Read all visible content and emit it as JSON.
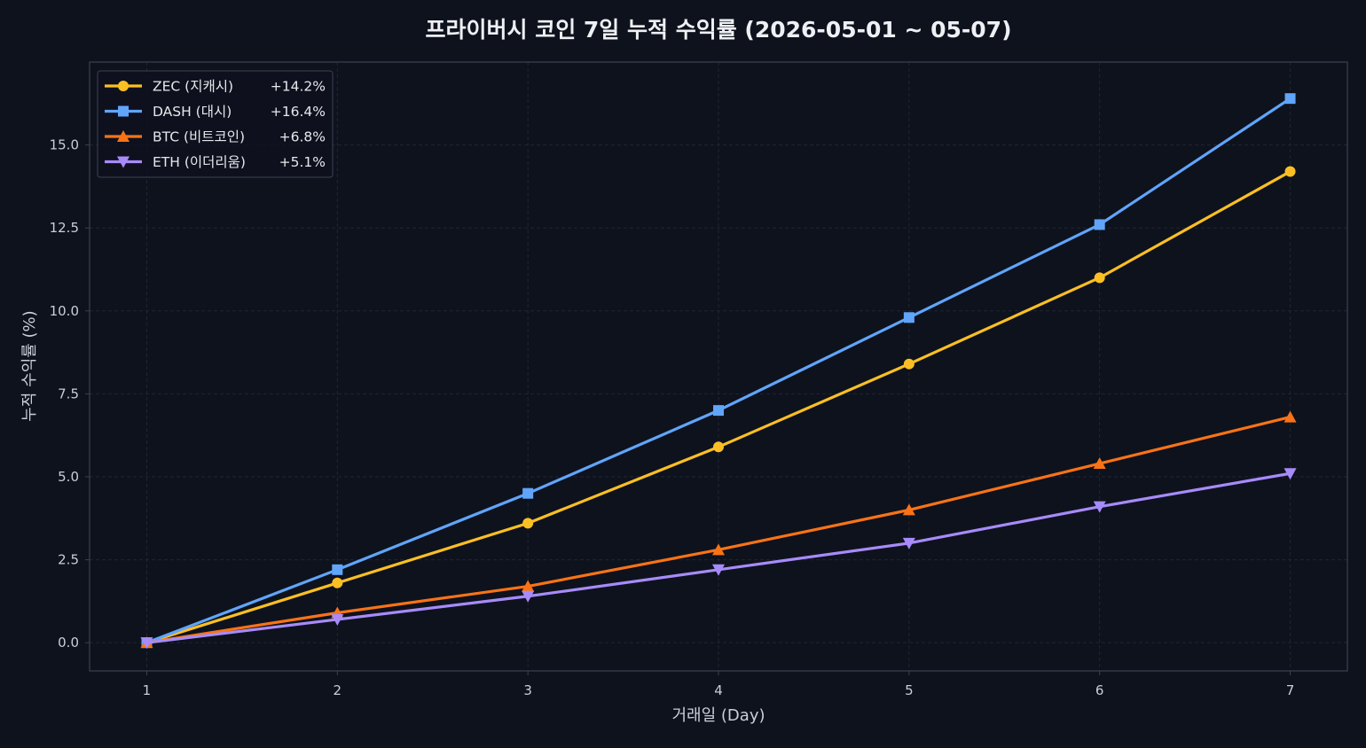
{
  "chart_data": {
    "type": "line",
    "title": "프라이버시 코인 7일 누적 수익률 (2026-05-01 ~ 05-07)",
    "xlabel": "거래일 (Day)",
    "ylabel": "누적 수익률 (%)",
    "x": [
      1,
      2,
      3,
      4,
      5,
      6,
      7
    ],
    "xticks": [
      "1",
      "2",
      "3",
      "4",
      "5",
      "6",
      "7"
    ],
    "xlim": [
      0.7,
      7.3
    ],
    "ylim": [
      -0.85,
      17.5
    ],
    "yticks": [
      "0.0",
      "2.5",
      "5.0",
      "7.5",
      "10.0",
      "12.5",
      "15.0"
    ],
    "grid": true,
    "legend_position": "top-left",
    "series": [
      {
        "name": "ZEC (지캐시)",
        "legend_value": "+14.2%",
        "color": "#fbbf24",
        "marker": "circle",
        "values": [
          0.0,
          1.8,
          3.6,
          5.9,
          8.4,
          11.0,
          14.2
        ]
      },
      {
        "name": "DASH (대시)",
        "legend_value": "+16.4%",
        "color": "#60a5fa",
        "marker": "square",
        "values": [
          0.0,
          2.2,
          4.5,
          7.0,
          9.8,
          12.6,
          16.4
        ]
      },
      {
        "name": "BTC (비트코인)",
        "legend_value": "+6.8%",
        "color": "#f97316",
        "marker": "triangle-up",
        "values": [
          0.0,
          0.9,
          1.7,
          2.8,
          4.0,
          5.4,
          6.8
        ]
      },
      {
        "name": "ETH (이더리움)",
        "legend_value": "+5.1%",
        "color": "#a78bfa",
        "marker": "triangle-down",
        "values": [
          0.0,
          0.7,
          1.4,
          2.2,
          3.0,
          4.1,
          5.1
        ]
      }
    ],
    "colors": {
      "background": "#0e121d",
      "axes_border": "#3a4152",
      "grid": "#1f2533",
      "text": "#e5e7eb",
      "tick_text": "#c9ced8",
      "legend_bg": "#0e121d",
      "legend_border": "#3a4152"
    }
  }
}
